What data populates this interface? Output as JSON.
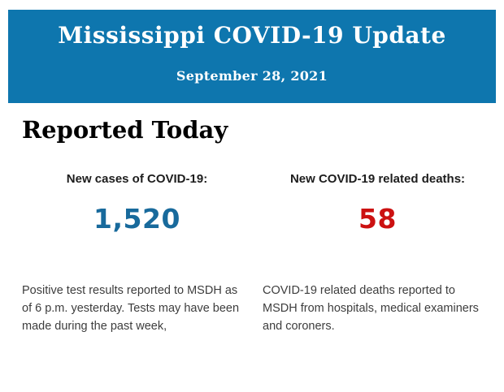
{
  "header": {
    "title": "Mississippi COVID-19 Update",
    "date": "September 28, 2021",
    "background_color": "#0e76ae",
    "text_color": "#ffffff"
  },
  "section": {
    "heading": "Reported Today"
  },
  "stats": [
    {
      "label": "New cases of COVID-19:",
      "value": "1,520",
      "value_color": "#186a9c",
      "description": "Positive test results reported to MSDH as of 6 p.m. yesterday. Tests may have been made during the past week,"
    },
    {
      "label": "New COVID-19 related deaths:",
      "value": "58",
      "value_color": "#cc1111",
      "description": "COVID-19 related deaths reported to MSDH from hospitals, medical examiners and coroners."
    }
  ]
}
